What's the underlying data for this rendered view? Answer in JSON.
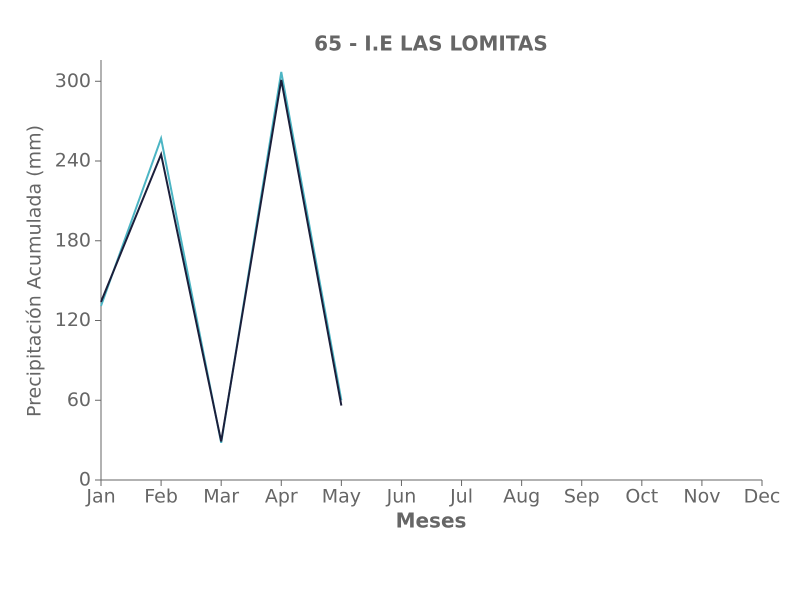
{
  "chart_data": {
    "type": "line",
    "title": "65 - I.E LAS LOMITAS",
    "x_label": "Meses",
    "y_label": "Precipitación Acumulada (mm)",
    "categories": [
      "Jan",
      "Feb",
      "Mar",
      "Apr",
      "May",
      "Jun",
      "Jul",
      "Aug",
      "Sep",
      "Oct",
      "Nov",
      "Dec"
    ],
    "series": [
      {
        "color": "#4cb5c4",
        "values": [
          131,
          257,
          28,
          307,
          60,
          null,
          null,
          null,
          null,
          null,
          null,
          null
        ]
      },
      {
        "color": "#1b1f3b",
        "values": [
          134,
          245,
          29,
          301,
          56,
          null,
          null,
          null,
          null,
          null,
          null,
          null
        ]
      }
    ],
    "ylim": [
      0,
      316
    ],
    "yticks": [
      0,
      60,
      120,
      180,
      240,
      300
    ],
    "grid": false
  }
}
